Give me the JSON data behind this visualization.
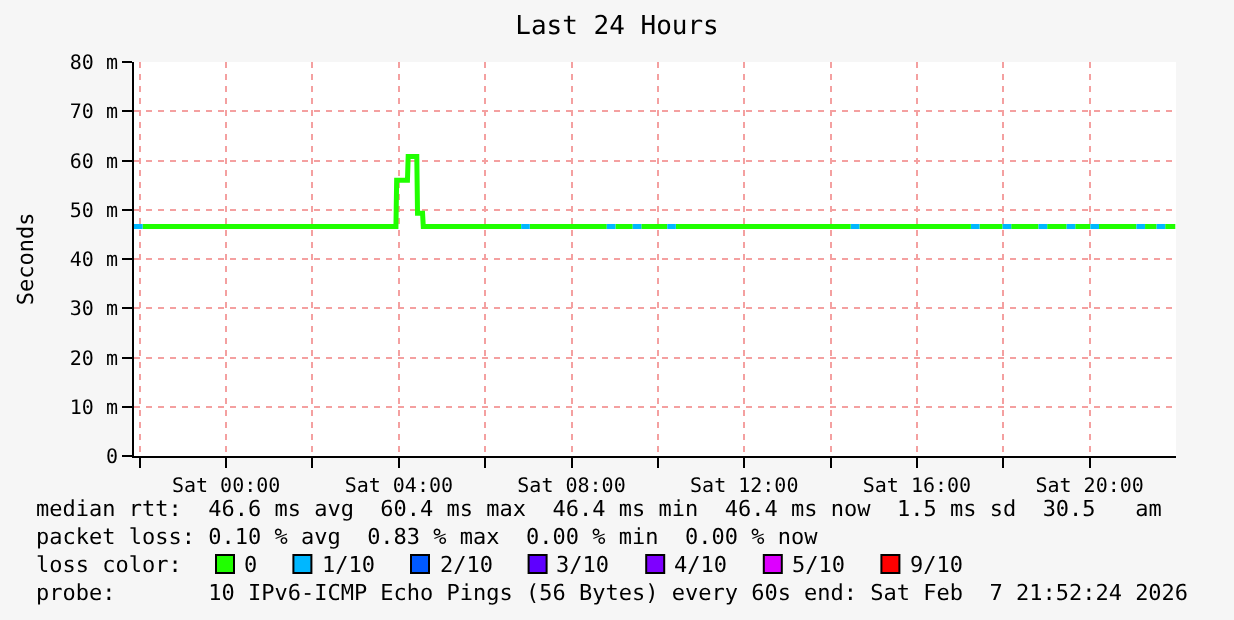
{
  "chart_data": {
    "type": "line",
    "title": "Last 24 Hours",
    "ylabel": "Seconds",
    "xlim": [
      "2026-02-06T21:52",
      "2026-02-07T22:00"
    ],
    "xticks": [
      {
        "value": "2026-02-06T22:00",
        "label": null
      },
      {
        "value": "2026-02-07T00:00",
        "label": "Sat 00:00"
      },
      {
        "value": "2026-02-07T02:00",
        "label": null
      },
      {
        "value": "2026-02-07T04:00",
        "label": "Sat 04:00"
      },
      {
        "value": "2026-02-07T06:00",
        "label": null
      },
      {
        "value": "2026-02-07T08:00",
        "label": "Sat 08:00"
      },
      {
        "value": "2026-02-07T10:00",
        "label": null
      },
      {
        "value": "2026-02-07T12:00",
        "label": "Sat 12:00"
      },
      {
        "value": "2026-02-07T14:00",
        "label": null
      },
      {
        "value": "2026-02-07T16:00",
        "label": "Sat 16:00"
      },
      {
        "value": "2026-02-07T18:00",
        "label": null
      },
      {
        "value": "2026-02-07T20:00",
        "label": "Sat 20:00"
      }
    ],
    "ylim": [
      0,
      80
    ],
    "yticks": [
      0,
      {
        "value": 10,
        "label": "10 m"
      },
      {
        "value": 20,
        "label": "20 m"
      },
      {
        "value": 30,
        "label": "30 m"
      },
      {
        "value": 40,
        "label": "40 m"
      },
      {
        "value": 50,
        "label": "50 m"
      },
      {
        "value": 60,
        "label": "60 m"
      },
      {
        "value": 70,
        "label": "70 m"
      },
      {
        "value": 80,
        "label": "80 m"
      }
    ],
    "grid": true,
    "legend": "bottom",
    "legend_title": "loss color:",
    "series": [
      {
        "name": "0",
        "color": "#20ff00",
        "x": [
          "2026-02-06T22:04",
          "2026-02-07T03:56",
          "2026-02-07T03:57",
          "2026-02-07T04:12",
          "2026-02-07T04:13",
          "2026-02-07T04:25",
          "2026-02-07T04:26",
          "2026-02-07T04:33",
          "2026-02-07T04:34",
          "2026-02-07T06:50",
          "2026-02-07T06:51",
          "2026-02-07T07:02",
          "2026-02-07T08:49",
          "2026-02-07T08:50",
          "2026-02-07T09:01",
          "2026-02-07T09:25",
          "2026-02-07T09:26",
          "2026-02-07T09:37",
          "2026-02-07T10:13",
          "2026-02-07T10:14",
          "2026-02-07T10:25",
          "2026-02-07T14:28",
          "2026-02-07T14:29",
          "2026-02-07T14:40",
          "2026-02-07T17:15",
          "2026-02-07T17:16",
          "2026-02-07T17:27",
          "2026-02-07T17:59",
          "2026-02-07T18:00",
          "2026-02-07T18:11",
          "2026-02-07T18:49",
          "2026-02-07T18:50",
          "2026-02-07T19:01",
          "2026-02-07T19:28",
          "2026-02-07T19:29",
          "2026-02-07T19:40",
          "2026-02-07T20:01",
          "2026-02-07T20:02",
          "2026-02-07T20:13",
          "2026-02-07T21:05",
          "2026-02-07T21:06",
          "2026-02-07T21:17",
          "2026-02-07T21:33",
          "2026-02-07T21:34",
          "2026-02-07T21:45",
          "2026-02-07T21:59"
        ],
        "values": [
          46.6,
          46.6,
          56,
          56,
          60.8,
          60.8,
          49.3,
          49.3,
          46.6,
          46.6,
          null,
          46.6,
          46.6,
          null,
          46.6,
          46.6,
          null,
          46.6,
          46.6,
          null,
          46.6,
          46.6,
          null,
          46.6,
          46.6,
          null,
          46.6,
          46.6,
          null,
          46.6,
          46.6,
          null,
          46.6,
          46.6,
          null,
          46.6,
          46.6,
          null,
          46.6,
          46.6,
          null,
          46.6,
          46.6,
          null,
          46.6,
          46.6
        ]
      },
      {
        "name": "1/10",
        "color": "#00b7ff",
        "x": [
          "2026-02-06T21:52",
          "2026-02-06T22:04",
          "2026-02-06T22:05",
          "2026-02-07T06:50",
          "2026-02-07T07:02",
          "2026-02-07T07:03",
          "2026-02-07T08:49",
          "2026-02-07T09:01",
          "2026-02-07T09:02",
          "2026-02-07T09:25",
          "2026-02-07T09:37",
          "2026-02-07T09:38",
          "2026-02-07T10:13",
          "2026-02-07T10:25",
          "2026-02-07T10:26",
          "2026-02-07T14:28",
          "2026-02-07T14:40",
          "2026-02-07T14:41",
          "2026-02-07T17:15",
          "2026-02-07T17:27",
          "2026-02-07T17:28",
          "2026-02-07T17:59",
          "2026-02-07T18:11",
          "2026-02-07T18:12",
          "2026-02-07T18:49",
          "2026-02-07T19:01",
          "2026-02-07T19:02",
          "2026-02-07T19:28",
          "2026-02-07T19:40",
          "2026-02-07T19:41",
          "2026-02-07T20:01",
          "2026-02-07T20:13",
          "2026-02-07T20:14",
          "2026-02-07T21:05",
          "2026-02-07T21:17",
          "2026-02-07T21:18",
          "2026-02-07T21:33",
          "2026-02-07T21:45"
        ],
        "values": [
          46.6,
          46.6,
          null,
          46.6,
          46.6,
          null,
          46.6,
          46.6,
          null,
          46.6,
          46.6,
          null,
          46.6,
          46.6,
          null,
          46.6,
          46.6,
          null,
          46.6,
          46.6,
          null,
          46.6,
          46.6,
          null,
          46.6,
          46.6,
          null,
          46.6,
          46.6,
          null,
          46.6,
          46.6,
          null,
          46.6,
          46.6,
          null,
          46.6,
          46.6
        ]
      },
      {
        "name": "2/10",
        "color": "#0059ff"
      },
      {
        "name": "3/10",
        "color": "#5e00ff"
      },
      {
        "name": "4/10",
        "color": "#7e00ff"
      },
      {
        "name": "5/10",
        "color": "#dd00ff"
      },
      {
        "name": "9/10",
        "color": "#ff0000"
      }
    ],
    "annotations": [
      "median rtt:  46.6 ms avg  60.4 ms max  46.4 ms min  46.4 ms now  1.5 ms sd  30.5   am",
      "packet loss: 0.10 % avg  0.83 % max  0.00 % min  0.00 % now",
      "probe:       10 IPv6-ICMP Echo Pings (56 Bytes) every 60s",
      "end: Sat Feb  7 21:52:24 2026"
    ]
  }
}
